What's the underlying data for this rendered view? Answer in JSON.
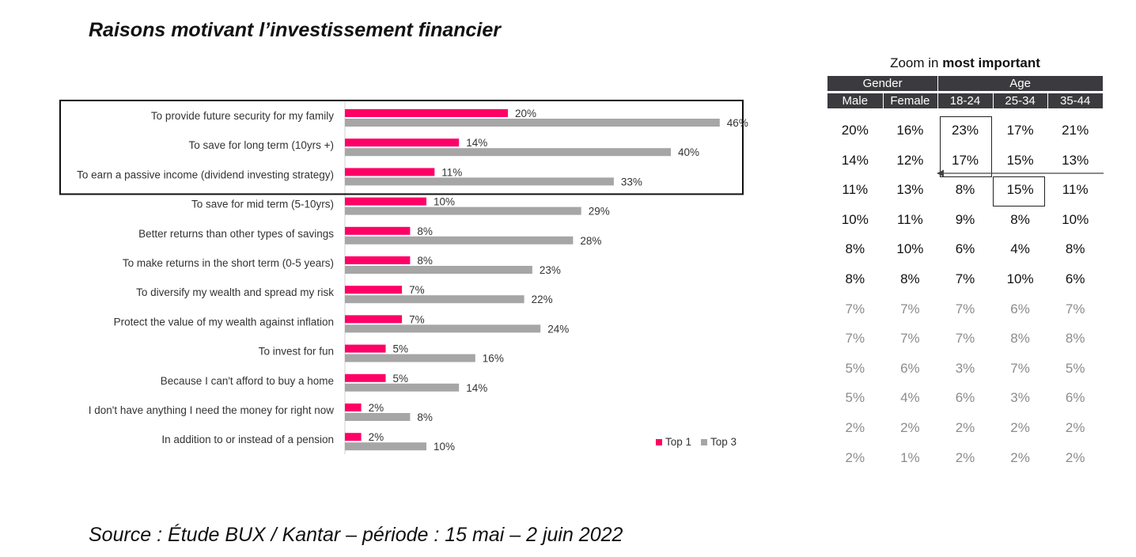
{
  "title": "Raisons motivant l’investissement financier",
  "source": "Source : Étude BUX / Kantar – période : 15 mai – 2 juin 2022",
  "chart_data": {
    "type": "bar",
    "orientation": "horizontal",
    "categories": [
      "To provide future security for my family",
      "To save for long term (10yrs +)",
      "To earn a passive income (dividend investing strategy)",
      "To save for mid term (5-10yrs)",
      "Better returns than other types of savings",
      "To make returns in the short term (0-5 years)",
      "To diversify my wealth and spread my risk",
      "Protect the value of my wealth against inflation",
      "To invest for fun",
      "Because I can't afford to buy a home",
      "I don't have anything I need the money for right now",
      "In addition to or instead of a pension"
    ],
    "series": [
      {
        "name": "Top 1",
        "color": "#ff0066",
        "values": [
          20,
          14,
          11,
          10,
          8,
          8,
          7,
          7,
          5,
          5,
          2,
          2
        ]
      },
      {
        "name": "Top 3",
        "color": "#a6a6a6",
        "values": [
          46,
          40,
          33,
          29,
          28,
          23,
          22,
          24,
          16,
          14,
          8,
          10
        ]
      }
    ],
    "value_suffix": "%",
    "legend": "bottom-right",
    "highlighted_categories": [
      0,
      1,
      2
    ]
  },
  "table": {
    "title_prefix": "Zoom in ",
    "title_bold": "most important",
    "groups": [
      "Gender",
      "Age"
    ],
    "columns": [
      "Male",
      "Female",
      "18-24",
      "25-34",
      "35-44"
    ],
    "rows": [
      [
        "20%",
        "16%",
        "23%",
        "17%",
        "21%"
      ],
      [
        "14%",
        "12%",
        "17%",
        "15%",
        "13%"
      ],
      [
        "11%",
        "13%",
        "8%",
        "15%",
        "11%"
      ],
      [
        "10%",
        "11%",
        "9%",
        "8%",
        "10%"
      ],
      [
        "8%",
        "10%",
        "6%",
        "4%",
        "8%"
      ],
      [
        "8%",
        "8%",
        "7%",
        "10%",
        "6%"
      ],
      [
        "7%",
        "7%",
        "7%",
        "6%",
        "7%"
      ],
      [
        "7%",
        "7%",
        "7%",
        "8%",
        "8%"
      ],
      [
        "5%",
        "6%",
        "3%",
        "7%",
        "5%"
      ],
      [
        "5%",
        "4%",
        "6%",
        "3%",
        "6%"
      ],
      [
        "2%",
        "2%",
        "2%",
        "2%",
        "2%"
      ],
      [
        "2%",
        "1%",
        "2%",
        "2%",
        "2%"
      ]
    ],
    "dark_rows": 6,
    "dark_color": "#111111",
    "light_color": "#8c8c8c"
  }
}
